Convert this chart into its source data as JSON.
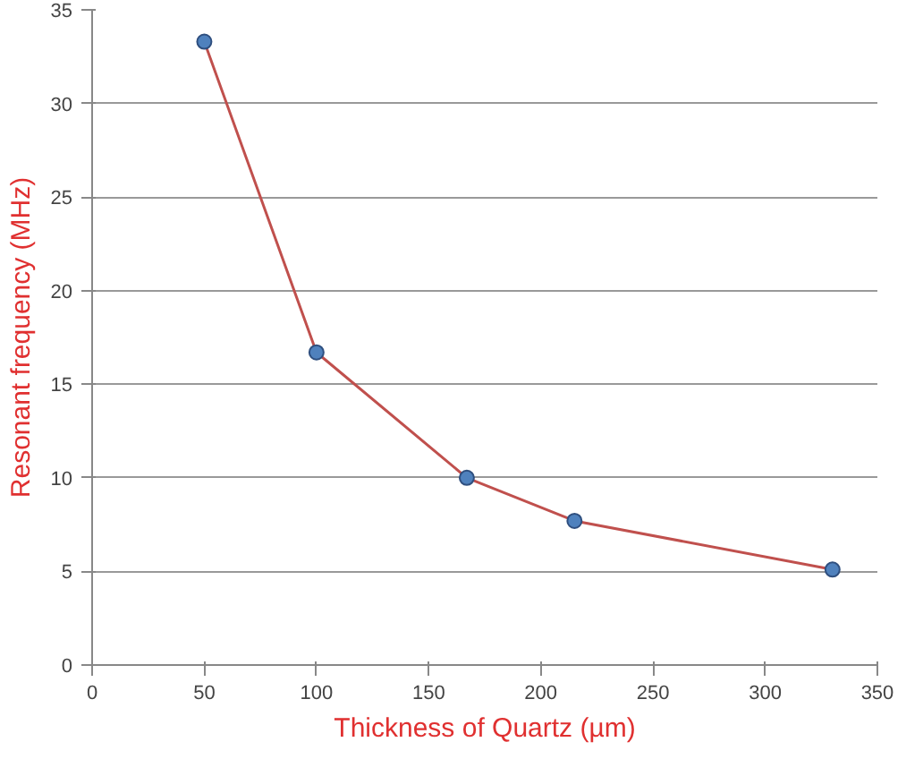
{
  "chart_data": {
    "type": "line",
    "xlabel": "Thickness of Quartz (µm)",
    "ylabel": "Resonant frequency (MHz)",
    "x": [
      50,
      100,
      167,
      215,
      330
    ],
    "series": [
      {
        "color": "#c0504d",
        "values": [
          33.3,
          16.7,
          10.0,
          7.7,
          5.1
        ]
      }
    ],
    "xlim": [
      0,
      350
    ],
    "xticks": [
      0,
      50,
      100,
      150,
      200,
      250,
      300,
      350
    ],
    "ylim": [
      0,
      35
    ],
    "yticks": [
      0,
      5,
      10,
      15,
      20,
      25,
      30,
      35
    ],
    "grid": "y",
    "marker": "circle",
    "line_style": "solid"
  }
}
